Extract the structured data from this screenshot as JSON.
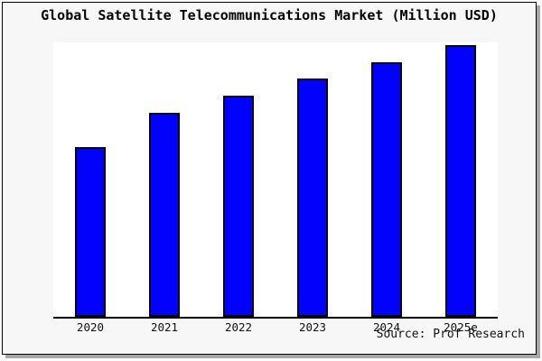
{
  "chart_data": {
    "type": "bar",
    "title": "Global Satellite Telecommunications Market (Million USD)",
    "categories": [
      "2020",
      "2021",
      "2022",
      "2023",
      "2024",
      "2025e"
    ],
    "values": [
      62.6,
      75.1,
      81.4,
      87.7,
      93.7,
      100
    ],
    "values_note": "No y-axis or data labels shown in chart; values estimated from bar heights, normalized so 2025e = 100",
    "xlabel": "",
    "ylabel": "",
    "ylim": [
      0,
      101
    ],
    "grid": false,
    "legend": null,
    "bar_color": "#0202fc",
    "bar_border_color": "#000000",
    "plot_background": "#ffffff",
    "frame_background": "#f7f7f7",
    "annotation": "Source: Prof Research"
  }
}
